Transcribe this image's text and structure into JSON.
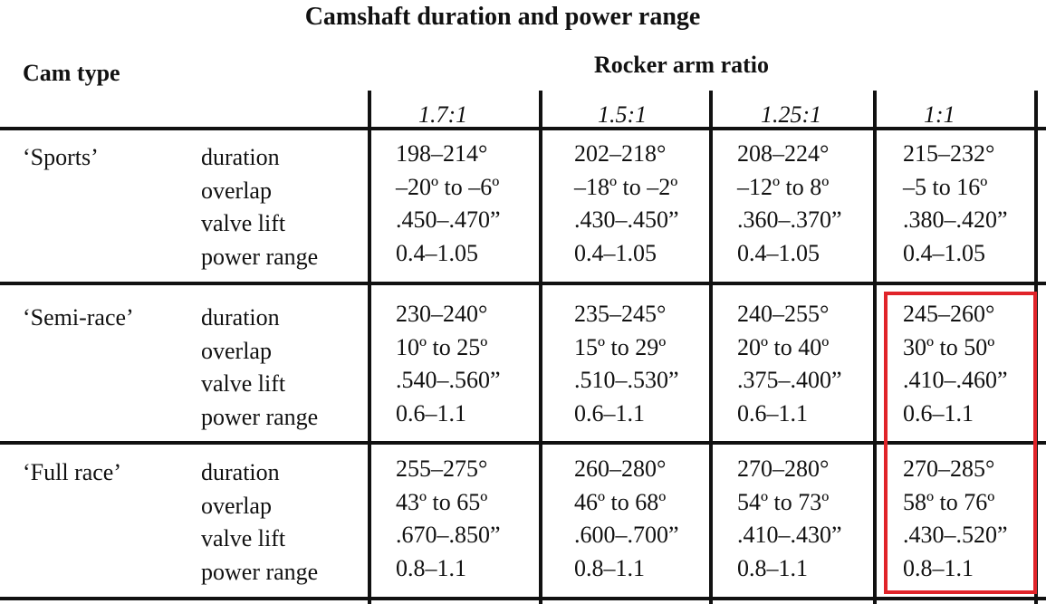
{
  "title": "Camshaft duration and power range",
  "header": {
    "cam_type": "Cam type",
    "rocker_arm_ratio": "Rocker arm ratio",
    "ratios": [
      "1.7:1",
      "1.5:1",
      "1.25:1",
      "1:1"
    ]
  },
  "rows": [
    {
      "cam_type": "‘Sports’",
      "parameters": [
        "duration",
        "overlap",
        "valve lift",
        "power range"
      ],
      "values": [
        [
          "198–214°",
          "–20º to –6º",
          ".450–.470”",
          "0.4–1.05"
        ],
        [
          "202–218°",
          "–18º to –2º",
          ".430–.450”",
          "0.4–1.05"
        ],
        [
          "208–224°",
          "–12º to 8º",
          ".360–.370”",
          "0.4–1.05"
        ],
        [
          "215–232°",
          "–5 to 16º",
          ".380–.420”",
          "0.4–1.05"
        ]
      ]
    },
    {
      "cam_type": "‘Semi-race’",
      "parameters": [
        "duration",
        "overlap",
        "valve lift",
        "power range"
      ],
      "values": [
        [
          "230–240°",
          "10º to 25º",
          ".540–.560”",
          "0.6–1.1"
        ],
        [
          "235–245°",
          "15º to 29º",
          ".510–.530”",
          "0.6–1.1"
        ],
        [
          "240–255°",
          "20º to 40º",
          ".375–.400”",
          "0.6–1.1"
        ],
        [
          "245–260°",
          "30º to 50º",
          ".410–.460”",
          "0.6–1.1"
        ]
      ]
    },
    {
      "cam_type": "‘Full race’",
      "parameters": [
        "duration",
        "overlap",
        "valve lift",
        "power range"
      ],
      "values": [
        [
          "255–275°",
          "43º to 65º",
          ".670–.850”",
          "0.8–1.1"
        ],
        [
          "260–280°",
          "46º to 68º",
          ".600–.700”",
          "0.8–1.1"
        ],
        [
          "270–280°",
          "54º to 73º",
          ".410–.430”",
          "0.8–1.1"
        ],
        [
          "270–285°",
          "58º to 76º",
          ".430–.520”",
          "0.8–1.1"
        ]
      ]
    }
  ]
}
